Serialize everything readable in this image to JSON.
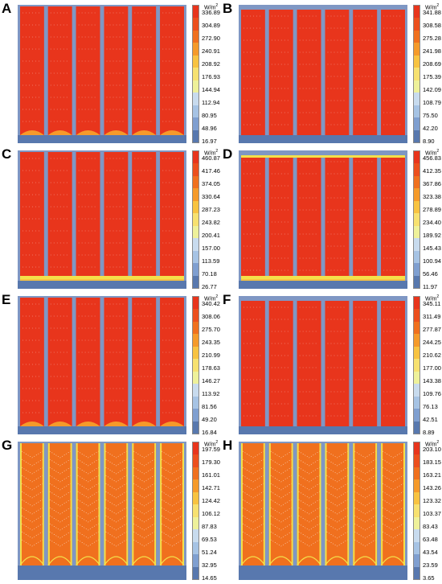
{
  "unit_label": "W/m",
  "unit_superscript": "2",
  "colors": {
    "hot": "#e8351c",
    "warm": "#f0701e",
    "yellow": "#f4e04a",
    "frame": "#7f97c4",
    "frame_dark": "#5878ae",
    "scale": [
      "#e8351c",
      "#ec4f1d",
      "#f0701e",
      "#f59a2a",
      "#f8c341",
      "#f7e170",
      "#eef19a",
      "#c8dbee",
      "#a6c3e4",
      "#7f9fd0",
      "#5878ae"
    ]
  },
  "panels": [
    {
      "label": "A",
      "style": "bottom-arcs",
      "ticks": [
        "336.89",
        "304.89",
        "272.90",
        "240.91",
        "208.92",
        "176.93",
        "144.94",
        "112.94",
        "80.95",
        "48.96",
        "16.97"
      ]
    },
    {
      "label": "B",
      "style": "top-bar",
      "ticks": [
        "341.88",
        "308.58",
        "275.28",
        "241.98",
        "208.69",
        "175.39",
        "142.09",
        "108.79",
        "75.50",
        "42.20",
        "8.90"
      ]
    },
    {
      "label": "C",
      "style": "bottom-yellow",
      "ticks": [
        "460.87",
        "417.46",
        "374.05",
        "330.64",
        "287.23",
        "243.82",
        "200.41",
        "157.00",
        "113.59",
        "70.18",
        "26.77"
      ]
    },
    {
      "label": "D",
      "style": "top-bottom-yellow",
      "ticks": [
        "456.83",
        "412.35",
        "367.86",
        "323.38",
        "278.89",
        "234.40",
        "189.92",
        "145.43",
        "100.94",
        "56.46",
        "11.97"
      ]
    },
    {
      "label": "E",
      "style": "bottom-arcs",
      "ticks": [
        "340.42",
        "308.06",
        "275.70",
        "243.35",
        "210.99",
        "178.63",
        "146.27",
        "113.92",
        "81.56",
        "49.20",
        "16.84"
      ]
    },
    {
      "label": "F",
      "style": "top-bar",
      "ticks": [
        "345.11",
        "311.49",
        "277.87",
        "244.25",
        "210.62",
        "177.00",
        "143.38",
        "109.76",
        "76.13",
        "42.51",
        "8.89"
      ]
    },
    {
      "label": "G",
      "style": "chevron",
      "ticks": [
        "197.59",
        "179.30",
        "161.01",
        "142.71",
        "124.42",
        "106.12",
        "87.83",
        "69.53",
        "51.24",
        "32.95",
        "14.65"
      ]
    },
    {
      "label": "H",
      "style": "chevron-wide",
      "ticks": [
        "203.10",
        "183.15",
        "163.21",
        "143.26",
        "123.32",
        "103.37",
        "83.43",
        "63.48",
        "43.54",
        "23.59",
        "3.65"
      ]
    }
  ]
}
